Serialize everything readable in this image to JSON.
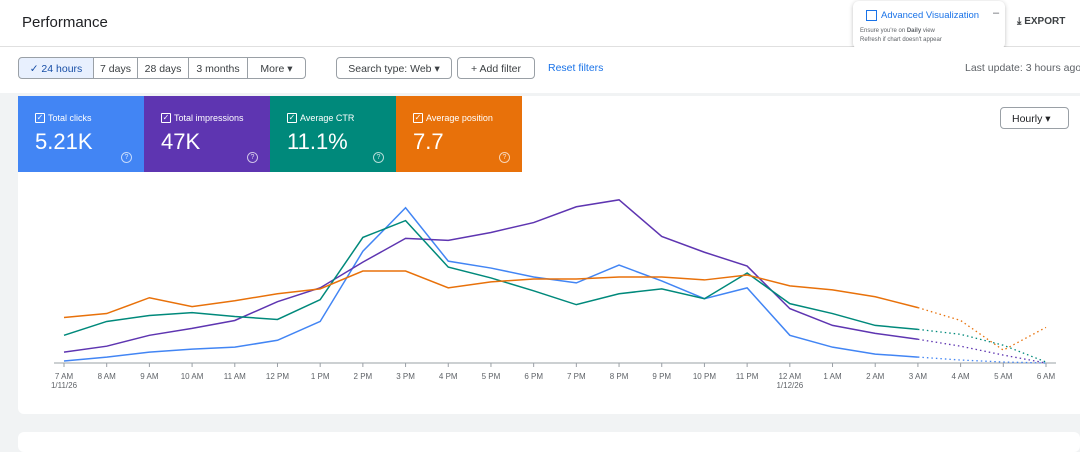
{
  "header": {
    "title": "Performance",
    "export": "EXPORT"
  },
  "banner": {
    "title": "Advanced Visualization",
    "line1_pre": "Ensure you're on ",
    "line1_bold": "Daily",
    "line1_post": " view",
    "line2": "Refresh if chart doesn't appear"
  },
  "filters": {
    "ranges": [
      "24 hours",
      "7 days",
      "28 days",
      "3 months",
      "More"
    ],
    "search_type": "Search type: Web",
    "add_filter": "Add filter",
    "reset": "Reset filters",
    "last_update": "Last update: 3 hours ago"
  },
  "granularity": "Hourly",
  "chart_data": {
    "type": "line",
    "categories": [
      "7 AM",
      "8 AM",
      "9 AM",
      "10 AM",
      "11 AM",
      "12 PM",
      "1 PM",
      "2 PM",
      "3 PM",
      "4 PM",
      "5 PM",
      "6 PM",
      "7 PM",
      "8 PM",
      "9 PM",
      "10 PM",
      "11 PM",
      "12 AM",
      "1 AM",
      "2 AM",
      "3 AM",
      "4 AM",
      "5 AM",
      "6 AM"
    ],
    "dates": [
      "1/11/26",
      null,
      null,
      null,
      null,
      null,
      null,
      null,
      null,
      null,
      null,
      null,
      null,
      null,
      null,
      null,
      null,
      "1/12/26",
      null,
      null,
      null,
      null,
      null,
      null
    ],
    "dotted_after": "3 AM",
    "ylim": [
      0,
      180
    ],
    "series": [
      {
        "name": "Total clicks",
        "total": "5.21K",
        "color": "#4285f4",
        "values": [
          2,
          6,
          11,
          14,
          16,
          23,
          42,
          113,
          157,
          103,
          96,
          87,
          81,
          99,
          83,
          65,
          76,
          28,
          16,
          9,
          6,
          3,
          1,
          0
        ]
      },
      {
        "name": "Total impressions",
        "total": "47K",
        "color": "#5e35b1",
        "values": [
          11,
          17,
          28,
          35,
          43,
          62,
          76,
          102,
          126,
          124,
          132,
          142,
          158,
          165,
          128,
          112,
          98,
          55,
          38,
          30,
          24,
          17,
          8,
          0
        ]
      },
      {
        "name": "Average CTR",
        "total": "11.1%",
        "color": "#00897b",
        "values": [
          28,
          42,
          48,
          51,
          47,
          44,
          64,
          127,
          144,
          97,
          86,
          73,
          59,
          70,
          75,
          65,
          91,
          60,
          50,
          38,
          34,
          29,
          18,
          1
        ]
      },
      {
        "name": "Average position",
        "total": "7.7",
        "color": "#e8710a",
        "values": [
          46,
          50,
          66,
          57,
          63,
          70,
          75,
          93,
          93,
          76,
          82,
          85,
          85,
          87,
          87,
          84,
          89,
          78,
          74,
          67,
          56,
          43,
          13,
          36
        ]
      }
    ]
  }
}
